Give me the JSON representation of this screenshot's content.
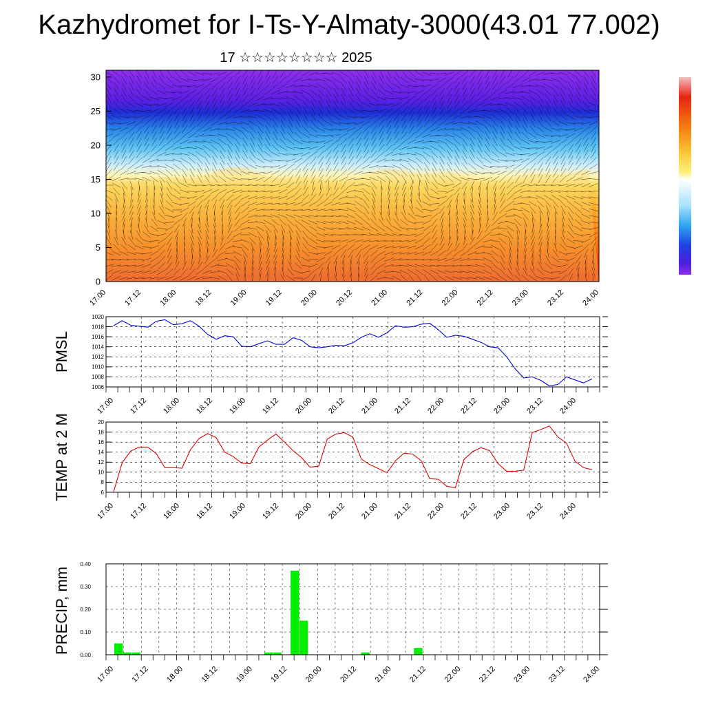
{
  "title": "Kazhydromet for I-Ts-Y-Almaty-3000(43.01 77.002)",
  "subtitle": "17 ☆☆☆☆☆☆☆☆ 2025",
  "colors": {
    "pmsl_line": "#0000dd",
    "temp_line": "#dd0000",
    "precip_bar": "#00ee00",
    "grid": "#000000"
  },
  "chart_data": [
    {
      "type": "heatmap",
      "name": "cross-section",
      "x_ticks": [
        "17.00",
        "17.12",
        "18.00",
        "18.12",
        "19.00",
        "19.12",
        "20.00",
        "20.12",
        "21.00",
        "21.12",
        "22.00",
        "22.12",
        "23.00",
        "23.12",
        "24.00"
      ],
      "y_ticks": [
        "0",
        "5",
        "10",
        "15",
        "20",
        "25",
        "30"
      ],
      "ylim": [
        0,
        31
      ],
      "colorbar": "violet-blue-cyan-white-yellow-orange-red",
      "overlay": "wind vectors"
    },
    {
      "type": "line",
      "name": "pmsl",
      "ylabel": "PMSL",
      "x_ticks": [
        "17.00",
        "17.12",
        "18.00",
        "18.12",
        "19.00",
        "19.12",
        "20.00",
        "20.12",
        "21.00",
        "21.12",
        "22.00",
        "22.12",
        "23.00",
        "23.12",
        "24.00"
      ],
      "y_ticks": [
        "1006",
        "1008",
        "1010",
        "1012",
        "1014",
        "1016",
        "1018",
        "1020"
      ],
      "ylim": [
        1006,
        1020
      ],
      "values": [
        1018.2,
        1019.2,
        1018.3,
        1018.1,
        1017.9,
        1019.1,
        1019.4,
        1018.4,
        1018.6,
        1019.2,
        1018.1,
        1016.5,
        1015.5,
        1016.2,
        1016.0,
        1014.1,
        1014.0,
        1014.6,
        1015.2,
        1014.5,
        1014.5,
        1015.8,
        1015.3,
        1014.0,
        1013.8,
        1014.0,
        1014.3,
        1014.2,
        1014.8,
        1015.9,
        1016.6,
        1015.9,
        1016.8,
        1018.2,
        1017.9,
        1018.0,
        1018.5,
        1018.7,
        1017.4,
        1015.9,
        1016.3,
        1016.1,
        1015.5,
        1014.9,
        1014.0,
        1013.8,
        1012.0,
        1009.6,
        1007.8,
        1008.0,
        1007.3,
        1006.2,
        1006.5,
        1008.0,
        1007.4,
        1006.8,
        1007.6
      ]
    },
    {
      "type": "line",
      "name": "temp",
      "ylabel": "TEMP at 2 M",
      "x_ticks": [
        "17.00",
        "17.12",
        "18.00",
        "18.12",
        "19.00",
        "19.12",
        "20.00",
        "20.12",
        "21.00",
        "21.12",
        "22.00",
        "22.12",
        "23.00",
        "23.12",
        "24.00"
      ],
      "y_ticks": [
        "6",
        "8",
        "10",
        "12",
        "14",
        "16",
        "18",
        "20"
      ],
      "ylim": [
        6,
        20
      ],
      "values": [
        6.1,
        11.9,
        14.2,
        15.0,
        15.0,
        13.7,
        10.9,
        10.9,
        10.8,
        14.5,
        16.7,
        17.7,
        16.9,
        14.0,
        13.1,
        11.8,
        11.7,
        15.0,
        16.4,
        17.6,
        16.0,
        14.3,
        12.9,
        11.0,
        11.2,
        16.6,
        17.6,
        17.9,
        17.0,
        12.6,
        11.5,
        10.7,
        9.9,
        12.3,
        13.8,
        13.6,
        12.3,
        8.7,
        8.6,
        7.2,
        6.9,
        12.5,
        14.1,
        14.9,
        14.3,
        11.7,
        10.2,
        10.2,
        10.4,
        17.9,
        18.5,
        19.2,
        17.0,
        15.8,
        12.2,
        10.9,
        10.5
      ]
    },
    {
      "type": "bar",
      "name": "precip",
      "ylabel": "PRECIP, mm",
      "x_ticks": [
        "17.00",
        "17.12",
        "18.00",
        "18.12",
        "19.00",
        "19.12",
        "20.00",
        "20.12",
        "21.00",
        "21.12",
        "22.00",
        "22.12",
        "23.00",
        "23.12",
        "24.00"
      ],
      "y_ticks": [
        "0.00",
        "0.10",
        "0.20",
        "0.30",
        "0.40"
      ],
      "ylim": [
        0,
        0.4
      ],
      "values": [
        0.05,
        0.01,
        0.01,
        0,
        0,
        0,
        0,
        0,
        0,
        0,
        0,
        0,
        0,
        0,
        0,
        0,
        0,
        0.01,
        0.01,
        0,
        0.37,
        0.15,
        0,
        0,
        0,
        0,
        0,
        0,
        0.01,
        0,
        0,
        0,
        0,
        0,
        0.03,
        0,
        0,
        0,
        0,
        0,
        0,
        0,
        0,
        0,
        0,
        0,
        0,
        0,
        0,
        0,
        0,
        0,
        0,
        0,
        0,
        0
      ]
    }
  ]
}
